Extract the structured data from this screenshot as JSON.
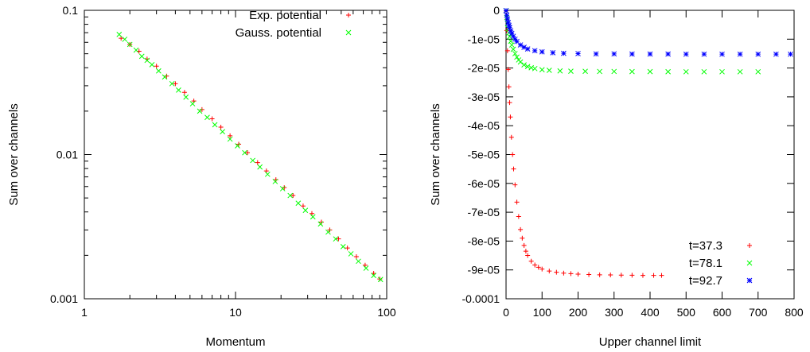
{
  "chart_data": [
    {
      "type": "scatter",
      "title": "",
      "xlabel": "Momentum",
      "ylabel": "Sum over channels",
      "xscale": "log",
      "yscale": "log",
      "xlim": [
        1,
        100
      ],
      "ylim": [
        0.001,
        0.1
      ],
      "xticks": [
        1,
        10,
        100
      ],
      "xtick_labels": [
        "1",
        "10",
        "100"
      ],
      "yticks": [
        0.001,
        0.01,
        0.1
      ],
      "ytick_labels": [
        "0.001",
        "0.01",
        "0.1"
      ],
      "legend_position": "top-right",
      "series": [
        {
          "name": "Exp. potential",
          "color": "#ff0000",
          "marker": "plus",
          "x": [
            1.75,
            2.0,
            2.3,
            2.6,
            3.0,
            3.5,
            4.0,
            4.6,
            5.3,
            6.0,
            7.0,
            8.0,
            9.2,
            10.5,
            12.0,
            14.0,
            16.0,
            18.5,
            21.0,
            24.0,
            28.0,
            32.0,
            37.0,
            42.0,
            48.0,
            55.0,
            63.0,
            72.0,
            82.0,
            90.0
          ],
          "y": [
            0.064,
            0.058,
            0.052,
            0.046,
            0.041,
            0.035,
            0.031,
            0.027,
            0.0235,
            0.0205,
            0.0177,
            0.0155,
            0.0135,
            0.0118,
            0.0103,
            0.0088,
            0.0077,
            0.0067,
            0.0059,
            0.0052,
            0.0044,
            0.0039,
            0.0034,
            0.003,
            0.0026,
            0.00225,
            0.00196,
            0.00171,
            0.0015,
            0.00137
          ]
        },
        {
          "name": "Gauss. potential",
          "color": "#00ff00",
          "marker": "cross",
          "x": [
            1.7,
            1.85,
            2.0,
            2.2,
            2.4,
            2.6,
            2.8,
            3.1,
            3.4,
            3.8,
            4.2,
            4.7,
            5.2,
            5.8,
            6.5,
            7.3,
            8.2,
            9.2,
            10.3,
            11.5,
            13.0,
            14.5,
            16.3,
            18.3,
            20.5,
            23.0,
            26.0,
            29.0,
            32.5,
            36.5,
            41.0,
            46.0,
            51.5,
            58.0,
            65.0,
            73.0,
            82.0,
            91.0
          ],
          "y": [
            0.068,
            0.063,
            0.058,
            0.053,
            0.048,
            0.045,
            0.042,
            0.038,
            0.0345,
            0.031,
            0.028,
            0.025,
            0.0225,
            0.02,
            0.0181,
            0.0161,
            0.0144,
            0.0128,
            0.0115,
            0.0103,
            0.0091,
            0.0082,
            0.0073,
            0.0065,
            0.0058,
            0.0052,
            0.0046,
            0.0041,
            0.0037,
            0.0033,
            0.0029,
            0.0026,
            0.0023,
            0.00205,
            0.00182,
            0.00163,
            0.00145,
            0.00136
          ]
        }
      ]
    },
    {
      "type": "scatter",
      "title": "",
      "xlabel": "Upper channel limit",
      "ylabel": "Sum over channels",
      "xlim": [
        0,
        800
      ],
      "ylim": [
        -0.0001,
        0
      ],
      "xticks": [
        0,
        100,
        200,
        300,
        400,
        500,
        600,
        700,
        800
      ],
      "xtick_labels": [
        "0",
        "100",
        "200",
        "300",
        "400",
        "500",
        "600",
        "700",
        "800"
      ],
      "yticks": [
        0,
        -1e-05,
        -2e-05,
        -3e-05,
        -4e-05,
        -5e-05,
        -6e-05,
        -7e-05,
        -8e-05,
        -9e-05,
        -0.0001
      ],
      "ytick_labels": [
        "0",
        "-1e-05",
        "-2e-05",
        "-3e-05",
        "-4e-05",
        "-5e-05",
        "-6e-05",
        "-7e-05",
        "-8e-05",
        "-9e-05",
        "-0.0001"
      ],
      "legend_position": "bottom-right",
      "series": [
        {
          "name": "t=37.3",
          "color": "#ff0000",
          "marker": "plus",
          "x": [
            0,
            2,
            4,
            6,
            8,
            10,
            12,
            15,
            18,
            21,
            25,
            30,
            35,
            40,
            45,
            50,
            55,
            60,
            70,
            80,
            90,
            100,
            120,
            140,
            160,
            180,
            200,
            230,
            260,
            290,
            320,
            350,
            380,
            410,
            432
          ],
          "y": [
            -2e-07,
            -7e-06,
            -1.4e-05,
            -2.05e-05,
            -2.65e-05,
            -3.2e-05,
            -3.7e-05,
            -4.4e-05,
            -5e-05,
            -5.5e-05,
            -6.05e-05,
            -6.65e-05,
            -7.15e-05,
            -7.6e-05,
            -7.9e-05,
            -8.15e-05,
            -8.35e-05,
            -8.5e-05,
            -8.7e-05,
            -8.83e-05,
            -8.91e-05,
            -8.97e-05,
            -9.04e-05,
            -9.08e-05,
            -9.11e-05,
            -9.13e-05,
            -9.145e-05,
            -9.16e-05,
            -9.17e-05,
            -9.175e-05,
            -9.18e-05,
            -9.185e-05,
            -9.19e-05,
            -9.19e-05,
            -9.19e-05
          ]
        },
        {
          "name": "t=78.1",
          "color": "#00ff00",
          "marker": "cross",
          "x": [
            0,
            2,
            4,
            6,
            8,
            10,
            13,
            16,
            20,
            25,
            30,
            35,
            40,
            50,
            60,
            70,
            80,
            100,
            120,
            150,
            180,
            220,
            260,
            300,
            350,
            400,
            450,
            500,
            550,
            600,
            650,
            700
          ],
          "y": [
            -1e-07,
            -2.5e-06,
            -4.5e-06,
            -6.3e-06,
            -7.8e-06,
            -9.1e-06,
            -1.07e-05,
            -1.2e-05,
            -1.35e-05,
            -1.5e-05,
            -1.62e-05,
            -1.72e-05,
            -1.79e-05,
            -1.89e-05,
            -1.95e-05,
            -1.99e-05,
            -2.02e-05,
            -2.06e-05,
            -2.08e-05,
            -2.1e-05,
            -2.11e-05,
            -2.115e-05,
            -2.12e-05,
            -2.12e-05,
            -2.125e-05,
            -2.125e-05,
            -2.128e-05,
            -2.13e-05,
            -2.13e-05,
            -2.13e-05,
            -2.13e-05,
            -2.13e-05
          ]
        },
        {
          "name": "t=92.7",
          "color": "#0000ff",
          "marker": "star",
          "x": [
            0,
            2,
            4,
            6,
            8,
            10,
            13,
            16,
            20,
            25,
            30,
            40,
            50,
            60,
            80,
            100,
            130,
            160,
            200,
            250,
            300,
            350,
            400,
            450,
            500,
            550,
            600,
            650,
            700,
            750,
            790
          ],
          "y": [
            -1e-07,
            -1.7e-06,
            -3e-06,
            -4.2e-06,
            -5.2e-06,
            -6e-06,
            -7.1e-06,
            -8e-06,
            -9e-06,
            -1e-05,
            -1.08e-05,
            -1.2e-05,
            -1.28e-05,
            -1.34e-05,
            -1.4e-05,
            -1.44e-05,
            -1.47e-05,
            -1.49e-05,
            -1.5e-05,
            -1.51e-05,
            -1.51e-05,
            -1.515e-05,
            -1.515e-05,
            -1.515e-05,
            -1.52e-05,
            -1.52e-05,
            -1.52e-05,
            -1.52e-05,
            -1.52e-05,
            -1.52e-05,
            -1.52e-05
          ]
        }
      ]
    }
  ]
}
